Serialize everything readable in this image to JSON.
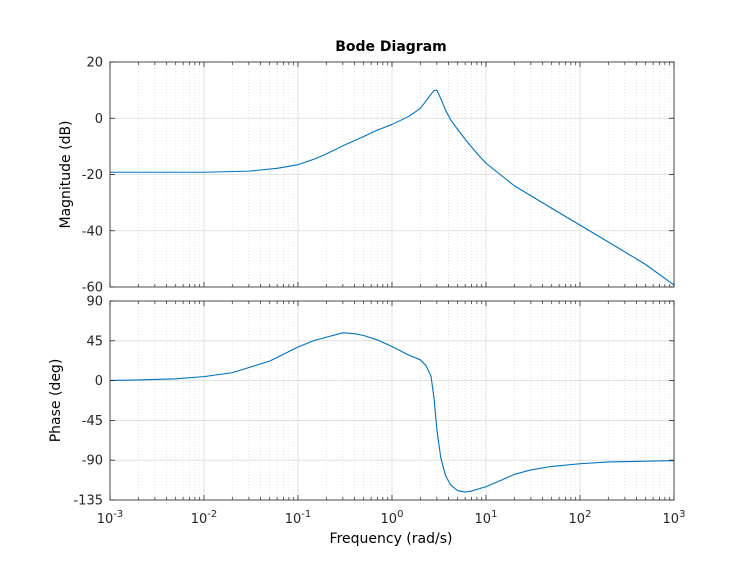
{
  "chart_data": {
    "type": "line",
    "title": "Bode Diagram",
    "xlabel": "Frequency  (rad/s)",
    "xscale": "log",
    "xlim": [
      0.001,
      1000
    ],
    "x_tick_bases": [
      "10",
      "10",
      "10",
      "10",
      "10",
      "10",
      "10"
    ],
    "x_tick_exponents": [
      "-3",
      "-2",
      "-1",
      "0",
      "1",
      "2",
      "3"
    ],
    "grid": true,
    "line_color": "#0072BD",
    "grid_color": "#DADADA",
    "panels": [
      {
        "name": "magnitude",
        "ylabel": "Magnitude (dB)",
        "ylim": [
          -60,
          20
        ],
        "y_ticks": [
          "-60",
          "-40",
          "-20",
          "0",
          "20"
        ],
        "series": [
          {
            "x": [
              0.001,
              0.003,
              0.01,
              0.03,
              0.06,
              0.1,
              0.15,
              0.2,
              0.3,
              0.5,
              0.7,
              1.0,
              1.5,
              2.0,
              2.5,
              2.8,
              3.0,
              3.3,
              3.7,
              4.2,
              5.0,
              6.0,
              8.0,
              10,
              20,
              50,
              100,
              200,
              500,
              1000
            ],
            "y": [
              -19.2,
              -19.2,
              -19.2,
              -18.8,
              -17.8,
              -16.5,
              -14.5,
              -12.7,
              -9.8,
              -6.5,
              -4.2,
              -2.2,
              0.6,
              3.5,
              7.8,
              9.9,
              10.0,
              7.0,
              3.0,
              -0.5,
              -4.0,
              -7.5,
              -12.5,
              -16.0,
              -24.0,
              -32.0,
              -38.0,
              -44.0,
              -52.0,
              -59.3
            ]
          }
        ]
      },
      {
        "name": "phase",
        "ylabel": "Phase (deg)",
        "ylim": [
          -135,
          90
        ],
        "y_ticks": [
          "-135",
          "-90",
          "-45",
          "0",
          "45",
          "90"
        ],
        "series": [
          {
            "x": [
              0.001,
              0.002,
              0.005,
              0.01,
              0.02,
              0.05,
              0.1,
              0.15,
              0.2,
              0.3,
              0.4,
              0.5,
              0.7,
              1.0,
              1.5,
              2.0,
              2.3,
              2.6,
              2.8,
              3.0,
              3.3,
              3.7,
              4.2,
              5.0,
              6.0,
              7.0,
              8.0,
              10,
              15,
              20,
              30,
              50,
              100,
              200,
              500,
              1000
            ],
            "y": [
              0.2,
              0.7,
              2.0,
              4.5,
              9.0,
              22.0,
              38.0,
              45.5,
              49.0,
              54.0,
              53.0,
              51.0,
              46.0,
              38.5,
              29.0,
              23.5,
              17.0,
              5.0,
              -20.0,
              -55.0,
              -87.0,
              -107.0,
              -118.0,
              -124.5,
              -126.0,
              -125.0,
              -123.0,
              -120.0,
              -112.0,
              -106.0,
              -101.0,
              -97.0,
              -94.0,
              -92.0,
              -91.2,
              -90.5
            ]
          }
        ]
      }
    ]
  }
}
